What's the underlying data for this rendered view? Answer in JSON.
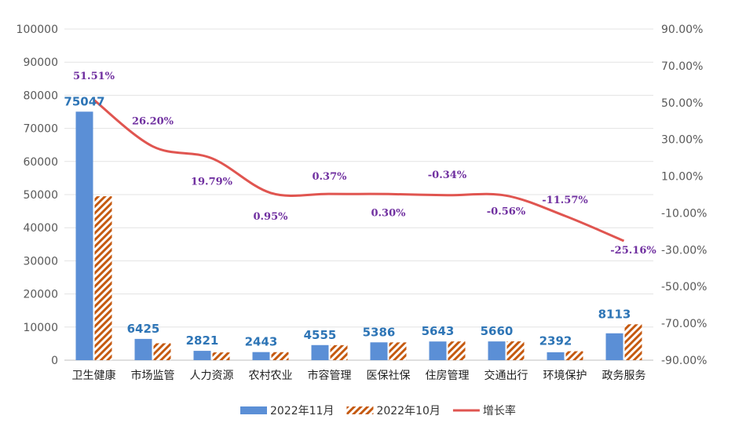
{
  "chart_data": {
    "type": "bar",
    "categories": [
      "卫生健康",
      "市场监管",
      "人力资源",
      "农村农业",
      "市容管理",
      "医保社保",
      "住房管理",
      "交通出行",
      "环境保护",
      "政务服务"
    ],
    "series": [
      {
        "name": "2022年11月",
        "type": "bar",
        "axis": "left",
        "color": "#5b8fd6",
        "values": [
          75047,
          6425,
          2821,
          2443,
          4555,
          5386,
          5643,
          5660,
          2392,
          8113
        ],
        "value_labels": [
          "75047",
          "6425",
          "2821",
          "2443",
          "4555",
          "5386",
          "5643",
          "5660",
          "2392",
          "8113"
        ]
      },
      {
        "name": "2022年10月",
        "type": "bar",
        "axis": "left",
        "color": "#c55a11",
        "pattern": "diagonal-hatch",
        "values": [
          49500,
          5100,
          2350,
          2420,
          4540,
          5370,
          5660,
          5690,
          2700,
          10840
        ]
      },
      {
        "name": "增长率",
        "type": "line",
        "axis": "right",
        "color": "#e05550",
        "values": [
          51.51,
          26.2,
          19.79,
          0.95,
          0.37,
          0.3,
          -0.34,
          -0.56,
          -11.57,
          -25.16
        ],
        "value_labels": [
          "51.51%",
          "26.20%",
          "19.79%",
          "0.95%",
          "0.37%",
          "0.30%",
          "-0.34%",
          "-0.56%",
          "-11.57%",
          "-25.16%"
        ]
      }
    ],
    "y_left": {
      "min": 0,
      "max": 100000,
      "step": 10000,
      "ticks": [
        "0",
        "10000",
        "20000",
        "30000",
        "40000",
        "50000",
        "60000",
        "70000",
        "80000",
        "90000",
        "100000"
      ]
    },
    "y_right": {
      "min": -90,
      "max": 90,
      "step": 20,
      "ticks": [
        "-90.00%",
        "-70.00%",
        "-50.00%",
        "-30.00%",
        "-10.00%",
        "10.00%",
        "30.00%",
        "50.00%",
        "70.00%",
        "90.00%"
      ]
    },
    "grid": true,
    "legend": {
      "position": "bottom",
      "items": [
        {
          "label": "2022年11月",
          "kind": "bar",
          "color": "#5b8fd6"
        },
        {
          "label": "2022年10月",
          "kind": "hatch",
          "color": "#c55a11"
        },
        {
          "label": "增长率",
          "kind": "line",
          "color": "#e05550"
        }
      ]
    }
  }
}
